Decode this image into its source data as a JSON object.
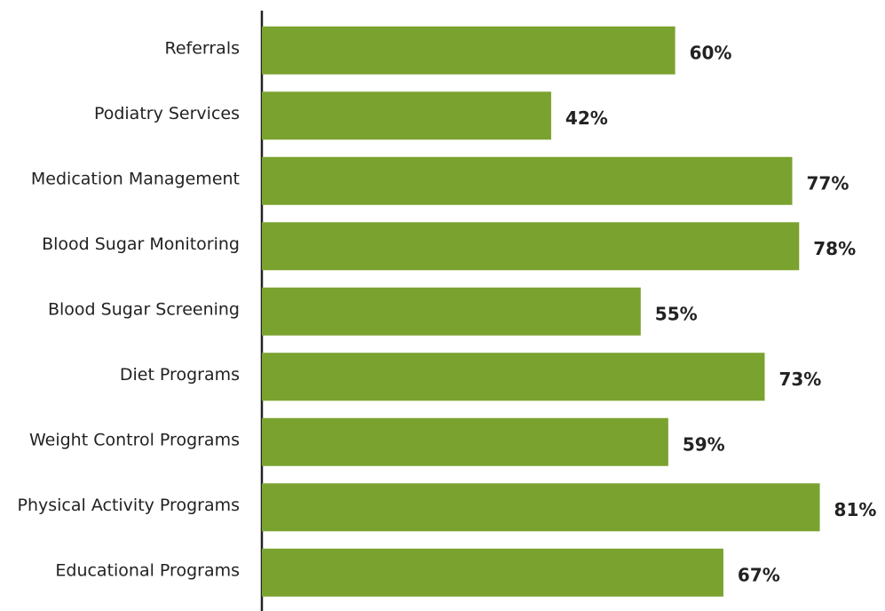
{
  "chart_data": {
    "type": "bar",
    "orientation": "horizontal",
    "categories": [
      "Referrals",
      "Podiatry Services",
      "Medication Management",
      "Blood Sugar Monitoring",
      "Blood Sugar Screening",
      "Diet Programs",
      "Weight Control Programs",
      "Physical Activity Programs",
      "Educational Programs"
    ],
    "values": [
      60,
      42,
      77,
      78,
      55,
      73,
      59,
      81,
      67
    ],
    "value_labels": [
      "60%",
      "42%",
      "77%",
      "78%",
      "55%",
      "73%",
      "59%",
      "81%",
      "67%"
    ],
    "color": "#7aa22f",
    "xlim": [
      0,
      100
    ]
  }
}
